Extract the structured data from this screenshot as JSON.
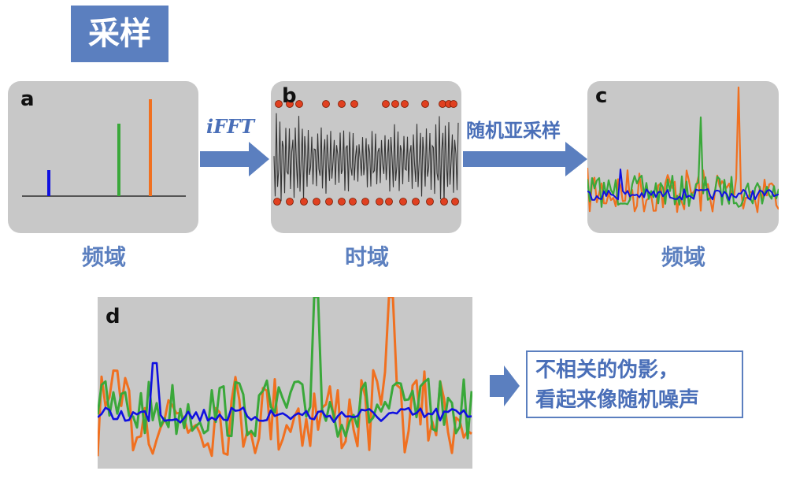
{
  "title": "采样",
  "panels": {
    "a": {
      "label": "a",
      "caption": "频域"
    },
    "b": {
      "label": "b",
      "caption": "时域"
    },
    "c": {
      "label": "c",
      "caption": "频域"
    },
    "d": {
      "label": "d"
    }
  },
  "arrows": {
    "ifft": "iFFT",
    "random_subsample": "随机亚采样"
  },
  "note": {
    "line1": "不相关的伪影，",
    "line2": "看起来像随机噪声"
  },
  "colors": {
    "accent": "#5b7fbf",
    "blue": "#1010e0",
    "green": "#3aa83a",
    "orange": "#f07020",
    "sample_dot": "#e04020",
    "panel_bg": "#c8c8c8"
  }
}
